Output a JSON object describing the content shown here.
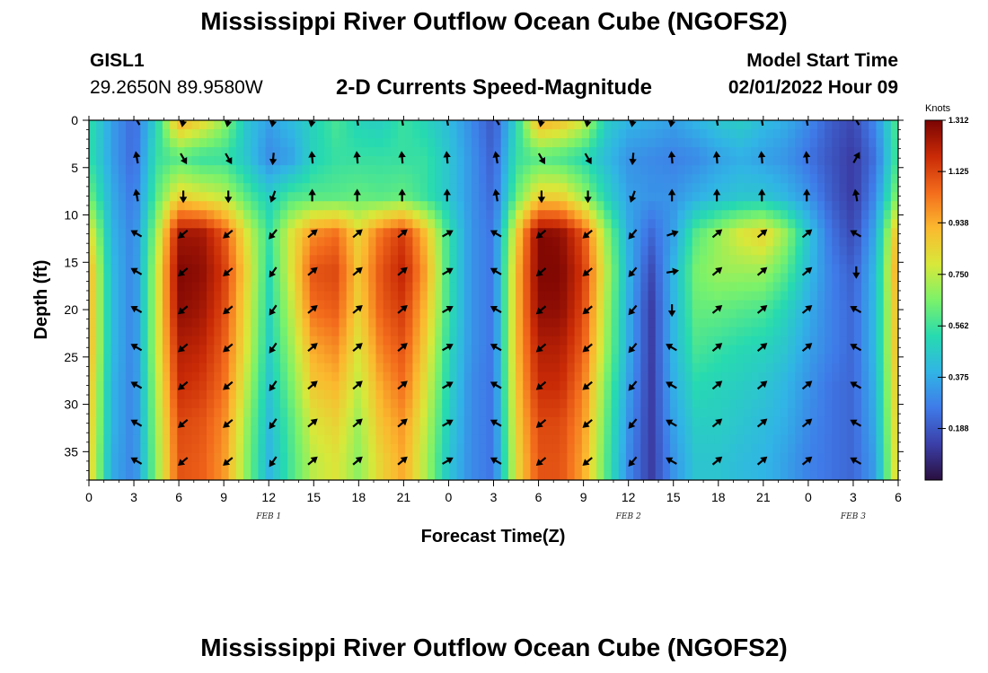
{
  "title": "Mississippi River Outflow Ocean Cube (NGOFS2)",
  "station": {
    "id": "GISL1",
    "coords": "29.2650N  89.9580W"
  },
  "panel_subtitle": "2-D Currents Speed-Magnitude",
  "model_start": {
    "label": "Model Start Time",
    "value": "02/01/2022 Hour 09"
  },
  "colors": {
    "colormap": [
      "#2a0f3e",
      "#3b3fa8",
      "#3f7ae8",
      "#31b4e6",
      "#27dab0",
      "#7bf26a",
      "#d8e83a",
      "#fbb92f",
      "#f36c1c",
      "#c92a06",
      "#7a0403"
    ]
  },
  "chart_data": {
    "type": "heatmap",
    "title": "2-D Currents Speed-Magnitude",
    "xlabel": "Forecast Time(Z)",
    "ylabel": "Depth (ft)",
    "x_range_hours": [
      0,
      54
    ],
    "y_range_ft": [
      0,
      38
    ],
    "y_inverted": true,
    "x_tick_hours": [
      0,
      3,
      6,
      9,
      12,
      15,
      18,
      21,
      24,
      27,
      30,
      33,
      36,
      39,
      42,
      45,
      48,
      51,
      54
    ],
    "x_tick_labels": [
      "0",
      "3",
      "6",
      "9",
      "12",
      "15",
      "18",
      "21",
      "0",
      "3",
      "6",
      "9",
      "12",
      "15",
      "18",
      "21",
      "0",
      "3",
      "6"
    ],
    "y_ticks": [
      0,
      5,
      10,
      15,
      20,
      25,
      30,
      35
    ],
    "y_tick_labels": [
      "0",
      "5",
      "10",
      "15",
      "20",
      "25",
      "30",
      "35"
    ],
    "date_labels": [
      {
        "hour": 12,
        "text": "FEB 1"
      },
      {
        "hour": 36,
        "text": "FEB 2"
      },
      {
        "hour": 51,
        "text": "FEB 3"
      }
    ],
    "colorbar": {
      "unit": "Knots",
      "min": 0.0,
      "max": 1.312,
      "tick_values": [
        1.312,
        1.125,
        0.938,
        0.75,
        0.562,
        0.375,
        0.188
      ],
      "tick_labels": [
        "1.312",
        "1.125",
        "0.938",
        "0.750",
        "0.562",
        "0.375",
        "0.188"
      ]
    },
    "speed_hours": [
      0,
      1.5,
      3,
      4.5,
      6,
      7.5,
      9,
      10.5,
      12,
      13.5,
      15,
      16.5,
      18,
      19.5,
      21,
      22.5,
      24,
      25.5,
      27,
      28.5,
      30,
      31.5,
      33,
      34.5,
      36,
      37.5,
      39,
      40.5,
      42,
      43.5,
      45,
      46.5,
      48,
      49.5,
      51,
      52.5,
      54
    ],
    "speed_depths_ft": [
      0,
      4,
      8,
      12,
      16,
      20,
      24,
      28,
      32,
      36,
      38
    ],
    "speed_knots": [
      [
        0.55,
        0.35,
        0.22,
        0.5,
        0.95,
        0.85,
        0.7,
        0.45,
        0.35,
        0.42,
        0.5,
        0.58,
        0.5,
        0.48,
        0.56,
        0.5,
        0.42,
        0.3,
        0.18,
        0.5,
        0.95,
        0.9,
        0.78,
        0.48,
        0.4,
        0.38,
        0.35,
        0.4,
        0.45,
        0.48,
        0.42,
        0.38,
        0.3,
        0.2,
        0.15,
        0.3,
        0.62
      ],
      [
        0.55,
        0.35,
        0.22,
        0.55,
        0.6,
        0.55,
        0.55,
        0.45,
        0.3,
        0.35,
        0.5,
        0.55,
        0.55,
        0.55,
        0.55,
        0.55,
        0.45,
        0.32,
        0.2,
        0.55,
        0.6,
        0.58,
        0.52,
        0.42,
        0.32,
        0.3,
        0.28,
        0.3,
        0.35,
        0.38,
        0.35,
        0.32,
        0.25,
        0.18,
        0.12,
        0.25,
        0.6
      ],
      [
        0.65,
        0.38,
        0.25,
        0.6,
        0.85,
        0.8,
        0.75,
        0.6,
        0.48,
        0.58,
        0.6,
        0.6,
        0.62,
        0.6,
        0.62,
        0.55,
        0.45,
        0.32,
        0.22,
        0.62,
        0.85,
        0.85,
        0.7,
        0.5,
        0.35,
        0.32,
        0.32,
        0.38,
        0.42,
        0.45,
        0.45,
        0.4,
        0.32,
        0.2,
        0.12,
        0.3,
        0.7
      ],
      [
        0.85,
        0.4,
        0.28,
        0.7,
        1.25,
        1.25,
        1.1,
        0.8,
        0.55,
        0.8,
        1.0,
        1.05,
        0.85,
        1.05,
        1.15,
        0.9,
        0.55,
        0.32,
        0.25,
        0.85,
        1.3,
        1.28,
        1.1,
        0.7,
        0.38,
        0.22,
        0.35,
        0.6,
        0.7,
        0.8,
        0.85,
        0.7,
        0.45,
        0.25,
        0.15,
        0.38,
        0.95
      ],
      [
        0.95,
        0.42,
        0.28,
        0.75,
        1.3,
        1.28,
        1.15,
        0.85,
        0.52,
        0.8,
        1.1,
        1.12,
        0.88,
        1.1,
        1.2,
        0.95,
        0.55,
        0.32,
        0.25,
        0.9,
        1.3,
        1.3,
        1.15,
        0.75,
        0.4,
        0.15,
        0.4,
        0.65,
        0.7,
        0.7,
        0.7,
        0.6,
        0.42,
        0.28,
        0.2,
        0.42,
        1.0
      ],
      [
        0.95,
        0.42,
        0.28,
        0.75,
        1.28,
        1.25,
        1.12,
        0.82,
        0.5,
        0.75,
        1.05,
        1.08,
        0.85,
        1.08,
        1.15,
        0.9,
        0.55,
        0.32,
        0.25,
        0.9,
        1.28,
        1.28,
        1.12,
        0.72,
        0.38,
        0.12,
        0.4,
        0.62,
        0.62,
        0.6,
        0.58,
        0.5,
        0.38,
        0.28,
        0.22,
        0.42,
        0.95
      ],
      [
        0.95,
        0.42,
        0.28,
        0.75,
        1.22,
        1.2,
        1.08,
        0.8,
        0.48,
        0.7,
        0.95,
        1.0,
        0.8,
        1.02,
        1.1,
        0.85,
        0.52,
        0.32,
        0.25,
        0.9,
        1.22,
        1.22,
        1.08,
        0.7,
        0.38,
        0.12,
        0.4,
        0.58,
        0.55,
        0.52,
        0.5,
        0.45,
        0.35,
        0.28,
        0.22,
        0.42,
        0.95
      ],
      [
        0.92,
        0.4,
        0.28,
        0.72,
        1.18,
        1.15,
        1.05,
        0.75,
        0.45,
        0.65,
        0.88,
        0.92,
        0.75,
        0.95,
        1.05,
        0.8,
        0.5,
        0.3,
        0.25,
        0.88,
        1.18,
        1.18,
        1.02,
        0.65,
        0.35,
        0.12,
        0.38,
        0.52,
        0.5,
        0.48,
        0.45,
        0.4,
        0.32,
        0.25,
        0.22,
        0.4,
        0.92
      ],
      [
        0.9,
        0.4,
        0.28,
        0.7,
        1.12,
        1.1,
        1.0,
        0.7,
        0.42,
        0.6,
        0.8,
        0.85,
        0.7,
        0.9,
        0.98,
        0.75,
        0.48,
        0.3,
        0.25,
        0.85,
        1.12,
        1.12,
        0.98,
        0.62,
        0.32,
        0.12,
        0.35,
        0.48,
        0.48,
        0.45,
        0.42,
        0.38,
        0.3,
        0.25,
        0.22,
        0.38,
        0.9
      ],
      [
        0.88,
        0.38,
        0.28,
        0.68,
        1.1,
        1.08,
        0.98,
        0.68,
        0.4,
        0.58,
        0.75,
        0.8,
        0.68,
        0.85,
        0.95,
        0.72,
        0.45,
        0.3,
        0.25,
        0.82,
        1.1,
        1.1,
        0.95,
        0.6,
        0.3,
        0.12,
        0.32,
        0.45,
        0.45,
        0.42,
        0.4,
        0.35,
        0.28,
        0.25,
        0.22,
        0.35,
        0.88
      ],
      [
        0.88,
        0.38,
        0.28,
        0.68,
        1.1,
        1.08,
        0.98,
        0.68,
        0.4,
        0.58,
        0.75,
        0.8,
        0.68,
        0.85,
        0.95,
        0.72,
        0.45,
        0.3,
        0.25,
        0.82,
        1.1,
        1.1,
        0.95,
        0.6,
        0.3,
        0.12,
        0.32,
        0.45,
        0.45,
        0.42,
        0.4,
        0.35,
        0.28,
        0.25,
        0.22,
        0.35,
        0.88
      ]
    ],
    "vector_hours": [
      3.2,
      6.3,
      9.3,
      12.3,
      14.9,
      17.9,
      20.9,
      23.9,
      27.2,
      30.2,
      33.3,
      36.3,
      38.9,
      41.9,
      44.9,
      47.9,
      51.2
    ],
    "vector_depths_ft": [
      0,
      4,
      8,
      12,
      16,
      20,
      24,
      28,
      32,
      36
    ],
    "vector_directions_deg": [
      [
        -120,
        100,
        100,
        100,
        100,
        -100,
        -100,
        -100,
        -120,
        100,
        100,
        100,
        100,
        -100,
        -100,
        -100,
        -120
      ],
      [
        -100,
        60,
        60,
        95,
        -95,
        -95,
        -95,
        -95,
        -100,
        60,
        60,
        95,
        -95,
        -95,
        -95,
        -95,
        -60
      ],
      [
        -100,
        90,
        90,
        110,
        -90,
        -90,
        -90,
        -90,
        -100,
        90,
        90,
        110,
        -90,
        -90,
        -90,
        -90,
        -100
      ],
      [
        -150,
        140,
        140,
        130,
        -40,
        -40,
        -40,
        -30,
        -150,
        140,
        140,
        130,
        -20,
        -40,
        -40,
        -40,
        -150
      ],
      [
        -150,
        140,
        140,
        125,
        -40,
        -40,
        -40,
        -30,
        -150,
        140,
        140,
        130,
        -10,
        -40,
        -40,
        -40,
        90
      ],
      [
        -150,
        140,
        140,
        125,
        -40,
        -40,
        -40,
        -30,
        -150,
        140,
        140,
        130,
        90,
        -40,
        -40,
        -40,
        -150
      ],
      [
        -150,
        140,
        140,
        125,
        -40,
        -40,
        -40,
        -30,
        -150,
        140,
        140,
        130,
        -150,
        -40,
        -40,
        -40,
        -150
      ],
      [
        -150,
        140,
        140,
        125,
        -40,
        -40,
        -40,
        -30,
        -150,
        140,
        140,
        130,
        -150,
        -40,
        -40,
        -40,
        -150
      ],
      [
        -150,
        140,
        140,
        125,
        -40,
        -40,
        -40,
        -30,
        -150,
        140,
        140,
        130,
        -150,
        -40,
        -40,
        -40,
        -150
      ],
      [
        -150,
        140,
        140,
        125,
        -40,
        -40,
        -40,
        -30,
        -150,
        140,
        140,
        130,
        -150,
        -40,
        -40,
        -40,
        -150
      ]
    ]
  }
}
